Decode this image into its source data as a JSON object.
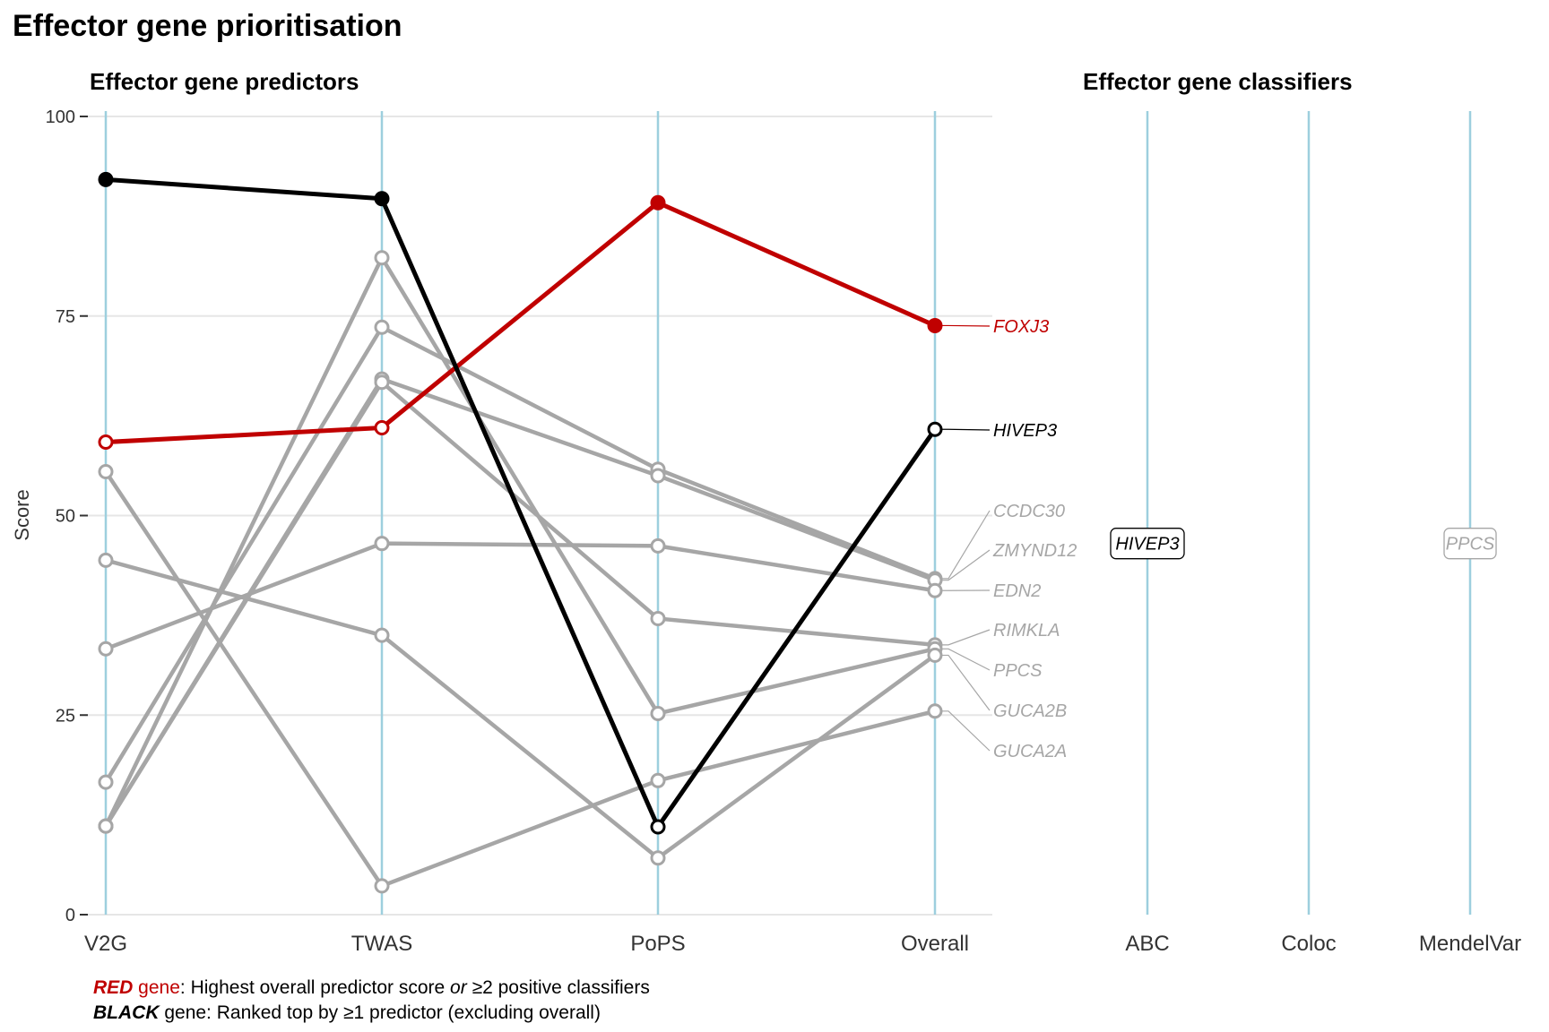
{
  "title": "Effector gene prioritisation",
  "colors": {
    "red": "#c00000",
    "black": "#000000",
    "grey": "#a6a6a6",
    "axis_line": "#9dcfde",
    "gridline": "#e6e6e6"
  },
  "chart_data": [
    {
      "type": "line",
      "title": "Effector gene predictors",
      "ylabel": "Score",
      "xlabel": "",
      "x": [
        "V2G",
        "TWAS",
        "PoPS",
        "Overall"
      ],
      "ylim": [
        0,
        100
      ],
      "yticks": [
        0,
        25,
        50,
        75,
        100
      ],
      "grid": true,
      "series": [
        {
          "name": "CCDC30",
          "color": "grey",
          "values": [
            16.6,
            73.6,
            55.8,
            42.1
          ]
        },
        {
          "name": "ZMYND12",
          "color": "grey",
          "values": [
            11.1,
            67.1,
            55.0,
            41.9
          ]
        },
        {
          "name": "EDN2",
          "color": "grey",
          "values": [
            33.3,
            46.5,
            46.2,
            40.6
          ]
        },
        {
          "name": "RIMKLA",
          "color": "grey",
          "values": [
            11.1,
            66.7,
            37.1,
            33.8
          ]
        },
        {
          "name": "PPCS",
          "color": "grey",
          "values": [
            11.1,
            82.3,
            25.2,
            33.3
          ]
        },
        {
          "name": "GUCA2B",
          "color": "grey",
          "values": [
            44.4,
            35.0,
            7.1,
            32.5
          ]
        },
        {
          "name": "GUCA2A",
          "color": "grey",
          "values": [
            55.5,
            3.6,
            16.8,
            25.5
          ]
        },
        {
          "name": "FOXJ3",
          "color": "red",
          "values": [
            59.2,
            61.0,
            89.2,
            73.8
          ],
          "filled": [
            false,
            false,
            true,
            true
          ]
        },
        {
          "name": "HIVEP3",
          "color": "black",
          "values": [
            92.1,
            89.7,
            11.0,
            60.8
          ],
          "filled": [
            true,
            true,
            false,
            false
          ]
        }
      ]
    },
    {
      "type": "table",
      "title": "Effector gene classifiers",
      "categories": [
        "ABC",
        "Coloc",
        "MendelVar"
      ],
      "labels": [
        {
          "category": "ABC",
          "gene": "HIVEP3",
          "color": "black",
          "y": 46.5
        },
        {
          "category": "MendelVar",
          "gene": "PPCS",
          "color": "grey",
          "y": 46.5
        }
      ]
    }
  ],
  "legend": {
    "line1": {
      "word": "RED",
      "gene": " gene",
      "text1": ": Highest overall predictor score ",
      "or": "or",
      "text2": " ≥2 positive classifiers"
    },
    "line2": {
      "word": "BLACK",
      "text": " gene: Ranked top by ≥1 predictor (excluding overall)"
    }
  }
}
